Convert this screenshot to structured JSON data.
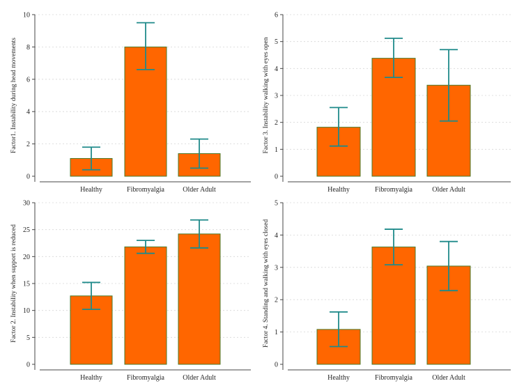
{
  "colors": {
    "bar_fill": "#ff6600",
    "bar_stroke": "#4a7a2a",
    "error_bar": "#1f8a8a"
  },
  "chart_data": [
    {
      "type": "bar",
      "title": "",
      "xlabel": "",
      "ylabel": "Factor1. Instability during head movements",
      "categories": [
        "Healthy",
        "Fibromyalgia",
        "Older Adult"
      ],
      "values": [
        1.1,
        8.0,
        1.4
      ],
      "error_low": [
        0.4,
        6.6,
        0.5
      ],
      "error_high": [
        1.8,
        9.5,
        2.3
      ],
      "ylim": [
        0,
        10
      ],
      "yticks": [
        0,
        2,
        4,
        6,
        8,
        10
      ],
      "grid": true
    },
    {
      "type": "bar",
      "title": "",
      "xlabel": "",
      "ylabel": "Factor 3. Instability walking with eyes open",
      "categories": [
        "Healthy",
        "Fibromyalgia",
        "Older Adult"
      ],
      "values": [
        1.82,
        4.38,
        3.38
      ],
      "error_low": [
        1.12,
        3.67,
        2.05
      ],
      "error_high": [
        2.55,
        5.12,
        4.7
      ],
      "ylim": [
        0,
        6
      ],
      "yticks": [
        0,
        1,
        2,
        3,
        4,
        5,
        6
      ],
      "grid": true
    },
    {
      "type": "bar",
      "title": "",
      "xlabel": "",
      "ylabel": "Factor 2. Instability when support is reduced",
      "categories": [
        "Healthy",
        "Fibromyalgia",
        "Older Adult"
      ],
      "values": [
        12.7,
        21.8,
        24.2
      ],
      "error_low": [
        10.2,
        20.6,
        21.6
      ],
      "error_high": [
        15.2,
        23.0,
        26.8
      ],
      "ylim": [
        0,
        30
      ],
      "yticks": [
        0,
        5,
        10,
        15,
        20,
        25,
        30
      ],
      "grid": true
    },
    {
      "type": "bar",
      "title": "",
      "xlabel": "",
      "ylabel": "Factor 4. Standing and walking with eyes closed",
      "categories": [
        "Healthy",
        "Fibromyalgia",
        "Older Adult"
      ],
      "values": [
        1.08,
        3.63,
        3.04
      ],
      "error_low": [
        0.55,
        3.08,
        2.28
      ],
      "error_high": [
        1.62,
        4.18,
        3.8
      ],
      "ylim": [
        0,
        5
      ],
      "yticks": [
        0,
        1,
        2,
        3,
        4,
        5
      ],
      "grid": true
    }
  ]
}
